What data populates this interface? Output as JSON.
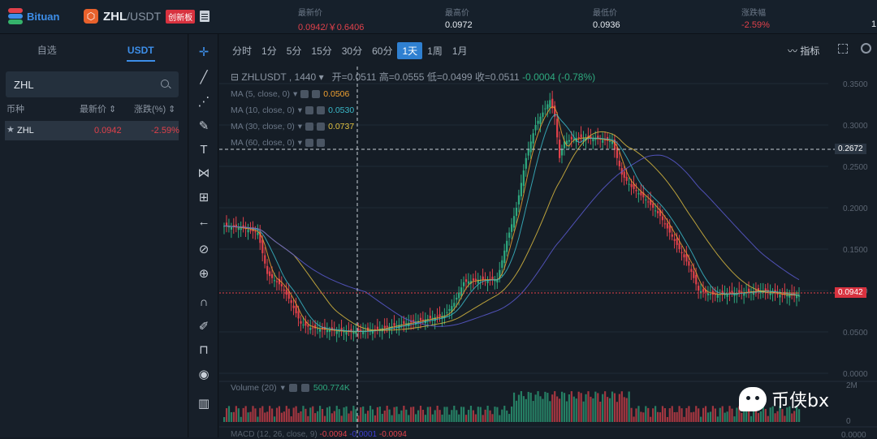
{
  "topbar": {
    "logo_text": "Bituan",
    "pair_base": "ZHL",
    "pair_quote": "/USDT",
    "badge": "创新板",
    "stats": [
      {
        "label": "最新价",
        "value": "0.0942/￥0.6406",
        "color": "red"
      },
      {
        "label": "最高价",
        "value": "0.0972",
        "color": "white"
      },
      {
        "label": "最低价",
        "value": "0.0936",
        "color": "white"
      },
      {
        "label": "涨跌幅",
        "value": "-2.59%",
        "color": "red"
      }
    ],
    "extra_value": "1"
  },
  "left": {
    "tabs": [
      "自选",
      "USDT"
    ],
    "active_tab": "USDT",
    "search_value": "ZHL",
    "columns": [
      "币种",
      "最新价 ⇕",
      "涨跌(%) ⇕"
    ],
    "rows": [
      {
        "symbol": "ZHL",
        "price": "0.0942",
        "change": "-2.59%"
      }
    ]
  },
  "chart": {
    "intervals": [
      "分时",
      "1分",
      "5分",
      "15分",
      "30分",
      "60分",
      "1天",
      "1周",
      "1月"
    ],
    "active_interval": "1天",
    "indicator_button": "指标",
    "symbol_title": "ZHLUSDT , 1440",
    "ohlc": {
      "open": "开=0.0511",
      "high": "高=0.0555",
      "low": "低=0.0499",
      "close": "收=0.0511",
      "change": "-0.0004 (-0.78%)"
    },
    "ma": [
      {
        "label": "MA (5, close, 0)",
        "value": "0.0506",
        "color": "#f0a030"
      },
      {
        "label": "MA (10, close, 0)",
        "value": "0.0530",
        "color": "#3ab8c8"
      },
      {
        "label": "MA (30, close, 0)",
        "value": "0.0737",
        "color": "#e0c040"
      },
      {
        "label": "MA (60, close, 0)",
        "value": "",
        "color": "#6060d0"
      }
    ],
    "volume_label": "Volume (20)",
    "volume_value": "500.774K",
    "macd_label": "MACD (12, 26, close, 9)",
    "macd_values": [
      "-0.0094",
      "-0.0001",
      "-0.0094"
    ],
    "crosshair_price": "0.2672",
    "last_price": "0.0942",
    "y_ticks": [
      "0.3500",
      "0.3000",
      "0.2500",
      "0.2000",
      "0.1500",
      "0.1000",
      "0.0500",
      "0.0000"
    ],
    "volume_ticks": [
      "2M",
      "0"
    ],
    "macd_tick": "0.0000"
  },
  "watermark": "币侠bx"
}
